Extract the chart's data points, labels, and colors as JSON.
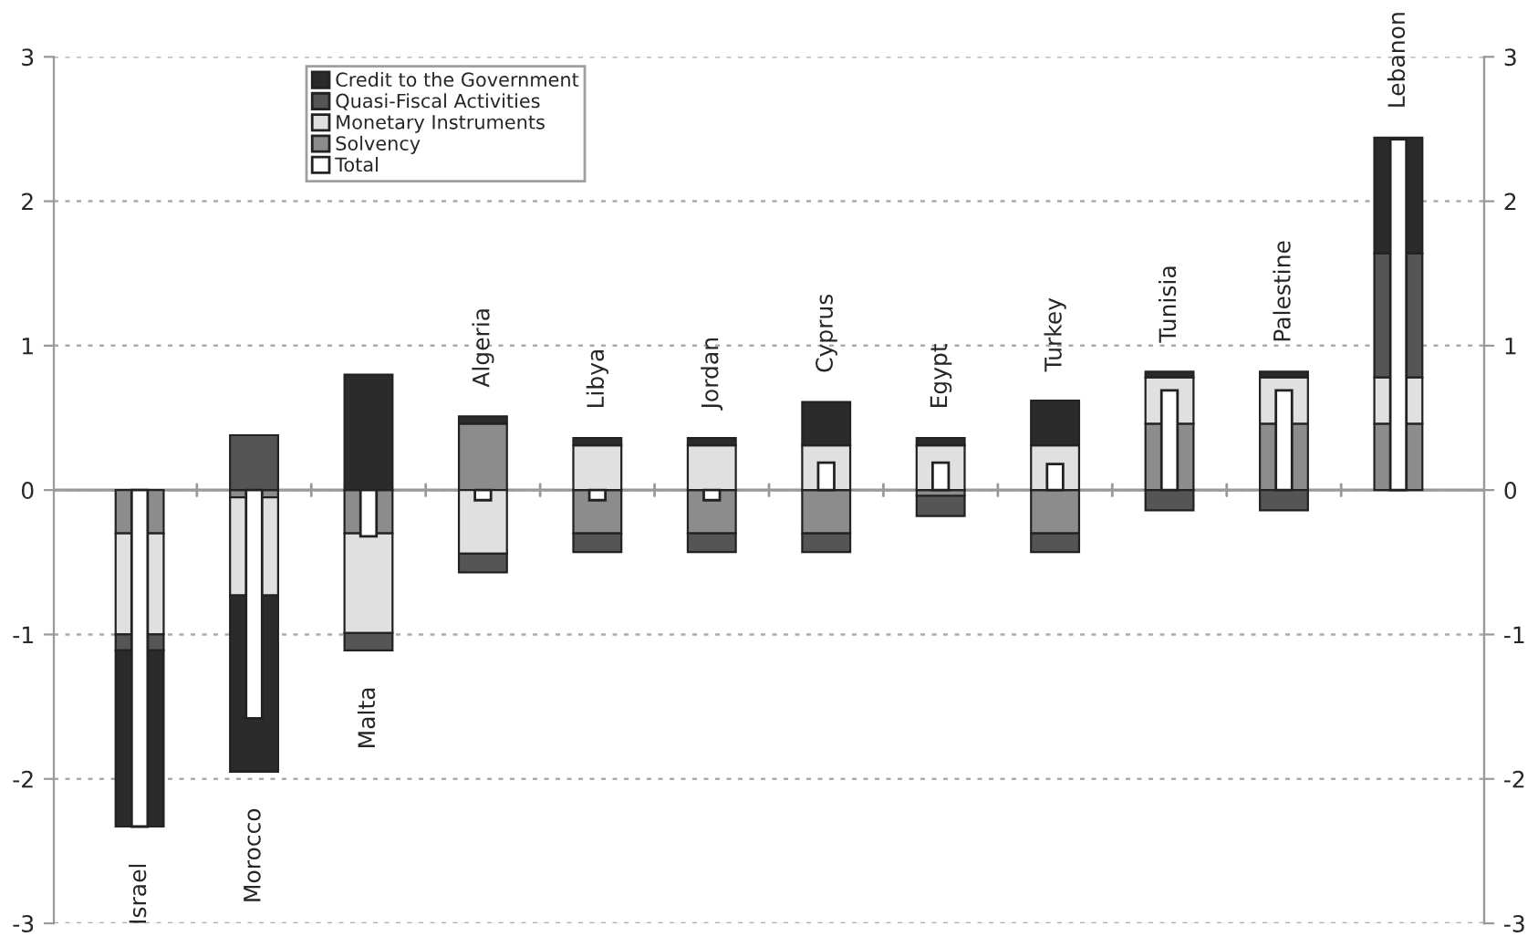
{
  "chart_data": [
    {
      "type": "bar",
      "stacked": true,
      "categories": [
        "Israel",
        "Morocco",
        "Malta",
        "Algeria",
        "Libya",
        "Jordan",
        "Cyprus",
        "Egypt",
        "Turkey",
        "Tunisia",
        "Palestine",
        "Lebanon"
      ],
      "series": [
        {
          "name": "Solvency",
          "color": "#8c8c8c",
          "values": [
            -0.3,
            -0.05,
            -0.3,
            0.46,
            -0.3,
            -0.3,
            -0.3,
            -0.04,
            -0.3,
            0.46,
            0.46,
            0.46
          ]
        },
        {
          "name": "Monetary Instruments",
          "color": "#e0e0e0",
          "values": [
            -0.7,
            -0.68,
            -0.69,
            -0.44,
            0.31,
            0.31,
            0.31,
            0.31,
            0.31,
            0.32,
            0.32,
            0.32
          ]
        },
        {
          "name": "Quasi-Fiscal Activities",
          "color": "#555555",
          "values": [
            -0.11,
            0.38,
            -0.12,
            -0.13,
            -0.13,
            -0.13,
            -0.13,
            -0.14,
            -0.13,
            -0.14,
            -0.14,
            0.86
          ]
        },
        {
          "name": "Credit to the Government",
          "color": "#2b2b2b",
          "values": [
            -1.22,
            -1.22,
            0.8,
            0.05,
            0.05,
            0.05,
            0.3,
            0.05,
            0.31,
            0.04,
            0.04,
            0.8
          ]
        }
      ],
      "ylim": [
        -3,
        3
      ],
      "yticks": [
        -3,
        -2,
        -1,
        0,
        1,
        2,
        3
      ],
      "y2lim": [
        -3,
        3
      ],
      "y2ticks": [
        -3,
        -2,
        -1,
        0,
        1,
        2,
        3
      ],
      "grid": "y",
      "legend": "top left"
    },
    {
      "type": "bar",
      "categories": [
        null,
        null,
        null,
        null,
        null,
        null,
        null,
        null,
        null,
        null,
        null,
        null
      ],
      "series": [
        {
          "name": "Total",
          "color": "#ffffff",
          "values": [
            -2.33,
            -1.58,
            -0.32,
            -0.07,
            -0.07,
            -0.07,
            0.19,
            0.19,
            0.18,
            0.69,
            0.69,
            2.43
          ]
        }
      ],
      "ylim": [
        -3,
        3
      ]
    }
  ]
}
